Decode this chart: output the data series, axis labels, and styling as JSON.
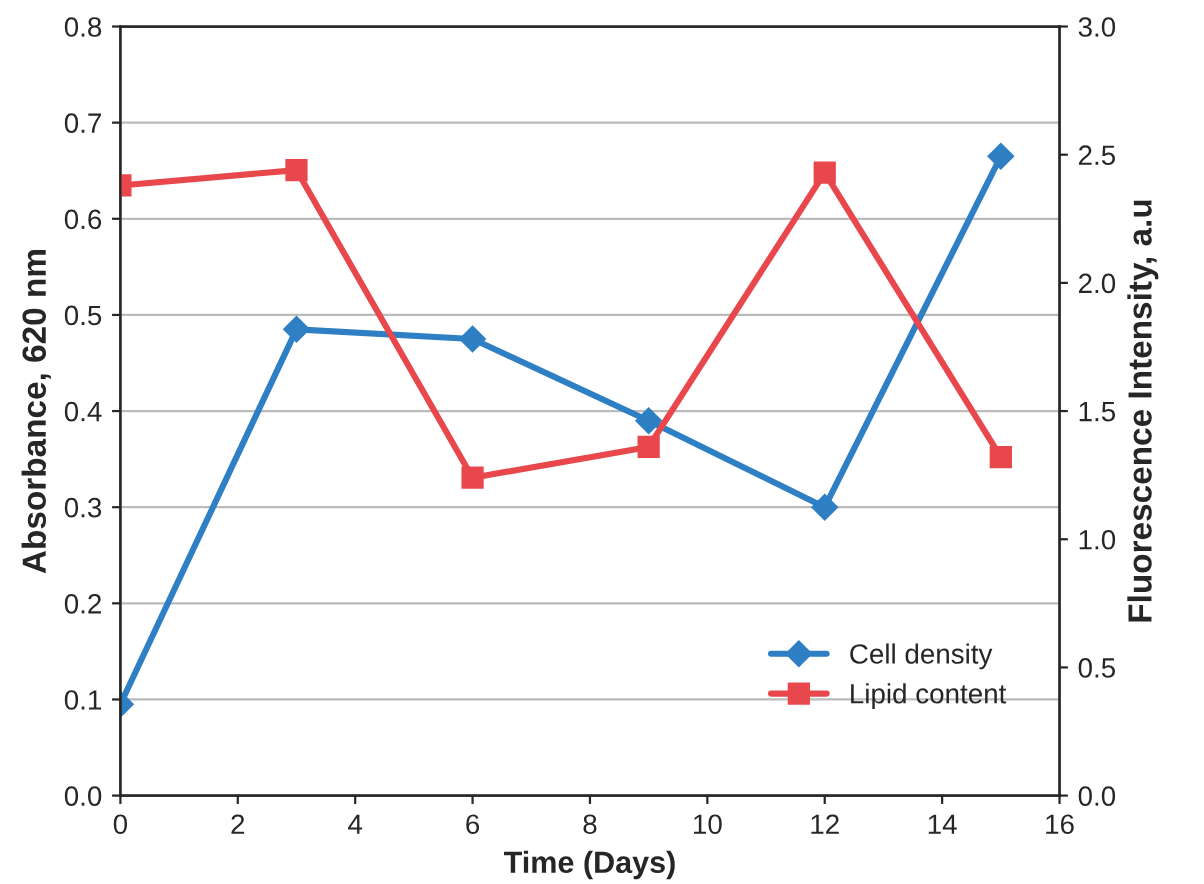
{
  "chart_data": {
    "type": "line",
    "xlabel": "Time (Days)",
    "ylabel": "Absorbance, 620 nm",
    "y2label": "Fluorescence Intensity, a.u",
    "x": [
      0,
      3,
      6,
      9,
      12,
      15
    ],
    "series": [
      {
        "name": "Cell density",
        "color": "#2e7fc4",
        "marker": "diamond",
        "values": [
          0.095,
          0.485,
          0.475,
          0.39,
          0.3,
          0.665
        ]
      },
      {
        "name": "Lipid content",
        "color": "#e8474c",
        "marker": "square",
        "axis": "y2",
        "values": [
          2.38,
          2.44,
          1.24,
          1.36,
          2.43,
          1.32
        ]
      }
    ],
    "xlim": [
      0,
      16
    ],
    "xticks": [
      0,
      2,
      4,
      6,
      8,
      10,
      12,
      14,
      16
    ],
    "ylim": [
      0,
      0.8
    ],
    "yticks": [
      {
        "value": 0,
        "label": "0.0"
      },
      0.1,
      0.2,
      0.3,
      0.4,
      0.5,
      0.6,
      0.7,
      0.8
    ],
    "y2lim": [
      0,
      3
    ],
    "y2ticks": [
      {
        "value": 0,
        "label": "0.0"
      },
      0.5,
      {
        "value": 1,
        "label": "1.0"
      },
      1.5,
      {
        "value": 2,
        "label": "2.0"
      },
      2.5,
      {
        "value": 3,
        "label": "3.0"
      }
    ],
    "grid": "y",
    "legend": "bottom right",
    "line_style": "solid"
  }
}
